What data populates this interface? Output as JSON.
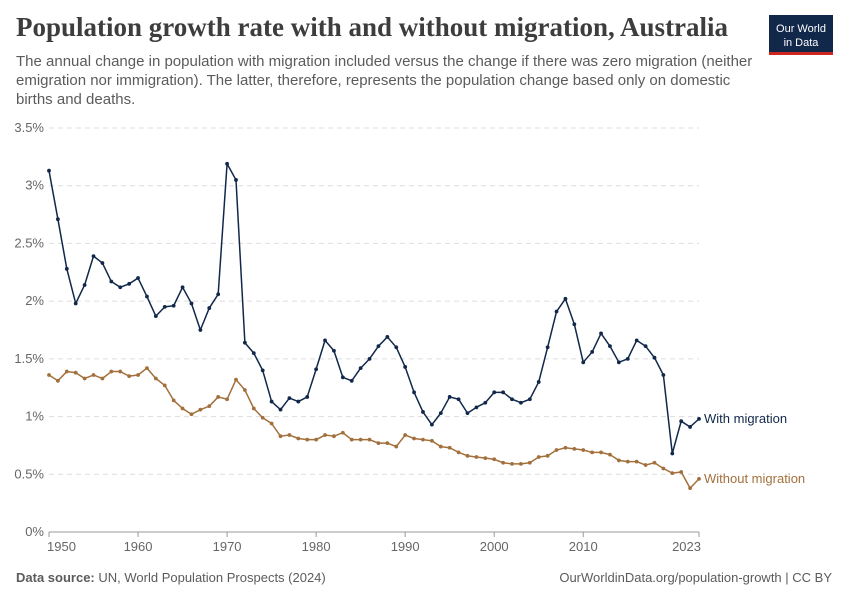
{
  "header": {
    "title": "Population growth rate with and without migration, Australia",
    "subtitle": "The annual change in population with migration included versus the change if there was zero migration (neither emigration nor immigration). The latter, therefore, represents the population change based only on domestic births and deaths.",
    "logo_line1": "Our World",
    "logo_line2": "in Data"
  },
  "footer": {
    "source_label": "Data source:",
    "source_text": "UN, World Population Prospects (2024)",
    "url": "OurWorldinData.org/population-growth | CC BY"
  },
  "colors": {
    "with": "#12284a",
    "without": "#a2703c",
    "grid": "#dddddd"
  },
  "chart_data": {
    "type": "line",
    "x": [
      1950,
      1951,
      1952,
      1953,
      1954,
      1955,
      1956,
      1957,
      1958,
      1959,
      1960,
      1961,
      1962,
      1963,
      1964,
      1965,
      1966,
      1967,
      1968,
      1969,
      1970,
      1971,
      1972,
      1973,
      1974,
      1975,
      1976,
      1977,
      1978,
      1979,
      1980,
      1981,
      1982,
      1983,
      1984,
      1985,
      1986,
      1987,
      1988,
      1989,
      1990,
      1991,
      1992,
      1993,
      1994,
      1995,
      1996,
      1997,
      1998,
      1999,
      2000,
      2001,
      2002,
      2003,
      2004,
      2005,
      2006,
      2007,
      2008,
      2009,
      2010,
      2011,
      2012,
      2013,
      2014,
      2015,
      2016,
      2017,
      2018,
      2019,
      2020,
      2021,
      2022,
      2023
    ],
    "series": [
      {
        "name": "With migration",
        "color": "#12284a",
        "values": [
          3.13,
          2.71,
          2.28,
          1.98,
          2.14,
          2.39,
          2.33,
          2.17,
          2.12,
          2.15,
          2.2,
          2.04,
          1.87,
          1.95,
          1.96,
          2.12,
          1.98,
          1.75,
          1.94,
          2.06,
          3.19,
          3.05,
          1.64,
          1.55,
          1.4,
          1.13,
          1.06,
          1.16,
          1.13,
          1.17,
          1.41,
          1.66,
          1.57,
          1.34,
          1.31,
          1.42,
          1.5,
          1.61,
          1.69,
          1.6,
          1.43,
          1.21,
          1.04,
          0.93,
          1.03,
          1.17,
          1.15,
          1.03,
          1.08,
          1.12,
          1.21,
          1.21,
          1.15,
          1.12,
          1.15,
          1.3,
          1.6,
          1.91,
          2.02,
          1.8,
          1.47,
          1.56,
          1.72,
          1.61,
          1.47,
          1.5,
          1.66,
          1.61,
          1.51,
          1.36,
          0.68,
          0.96,
          0.91,
          0.98
        ]
      },
      {
        "name": "Without migration",
        "color": "#a2703c",
        "values": [
          1.36,
          1.31,
          1.39,
          1.38,
          1.33,
          1.36,
          1.33,
          1.39,
          1.39,
          1.35,
          1.36,
          1.42,
          1.33,
          1.27,
          1.14,
          1.07,
          1.02,
          1.06,
          1.09,
          1.17,
          1.15,
          1.32,
          1.23,
          1.07,
          0.99,
          0.94,
          0.83,
          0.84,
          0.81,
          0.8,
          0.8,
          0.84,
          0.83,
          0.86,
          0.8,
          0.8,
          0.8,
          0.77,
          0.77,
          0.74,
          0.84,
          0.81,
          0.8,
          0.79,
          0.74,
          0.73,
          0.69,
          0.66,
          0.65,
          0.64,
          0.63,
          0.6,
          0.59,
          0.59,
          0.6,
          0.65,
          0.66,
          0.71,
          0.73,
          0.72,
          0.71,
          0.69,
          0.69,
          0.67,
          0.62,
          0.61,
          0.61,
          0.58,
          0.6,
          0.55,
          0.51,
          0.52,
          0.38,
          0.46
        ]
      }
    ],
    "y_ticks": [
      0,
      0.5,
      1,
      1.5,
      2,
      2.5,
      3,
      3.5
    ],
    "y_tick_labels": [
      "0%",
      "0.5%",
      "1%",
      "1.5%",
      "2%",
      "2.5%",
      "3%",
      "3.5%"
    ],
    "x_ticks": [
      1950,
      1960,
      1970,
      1980,
      1990,
      2000,
      2010,
      2023
    ],
    "x_tick_labels": [
      "1950",
      "1960",
      "1970",
      "1980",
      "1990",
      "2000",
      "2010",
      "2023"
    ],
    "ylim": [
      0,
      3.5
    ],
    "xlim": [
      1950,
      2023
    ],
    "grid": true,
    "legend": "inline-right"
  }
}
